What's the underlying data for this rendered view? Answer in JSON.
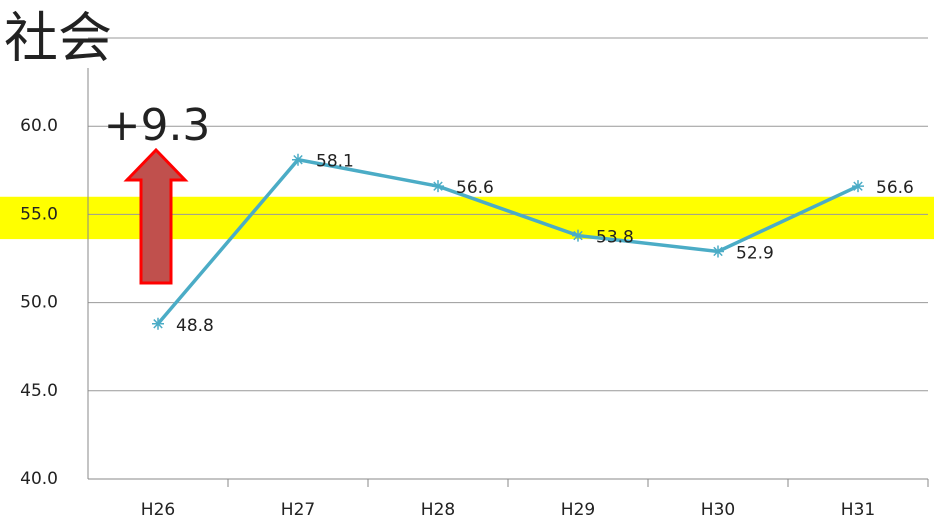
{
  "chart_data": {
    "type": "line",
    "title": "社会",
    "categories": [
      "H26",
      "H27",
      "H28",
      "H29",
      "H30",
      "H31"
    ],
    "series": [
      {
        "name": "社会",
        "color": "#4bacc6",
        "values": [
          48.8,
          58.1,
          56.6,
          53.8,
          52.9,
          56.6
        ]
      }
    ],
    "ylim": [
      40,
      65
    ],
    "yticks": [
      {
        "value": 40,
        "label": "40.0"
      },
      {
        "value": 45,
        "label": "45.0"
      },
      {
        "value": 50,
        "label": "50.0"
      },
      {
        "value": 55,
        "label": "55.0"
      },
      {
        "value": 60,
        "label": "60.0"
      }
    ],
    "grid": true,
    "highlight_band": {
      "range": [
        53.6,
        56.0
      ],
      "color": "#ffff00"
    },
    "annotation": {
      "text": "+9.3",
      "color": "#e8201e"
    }
  }
}
